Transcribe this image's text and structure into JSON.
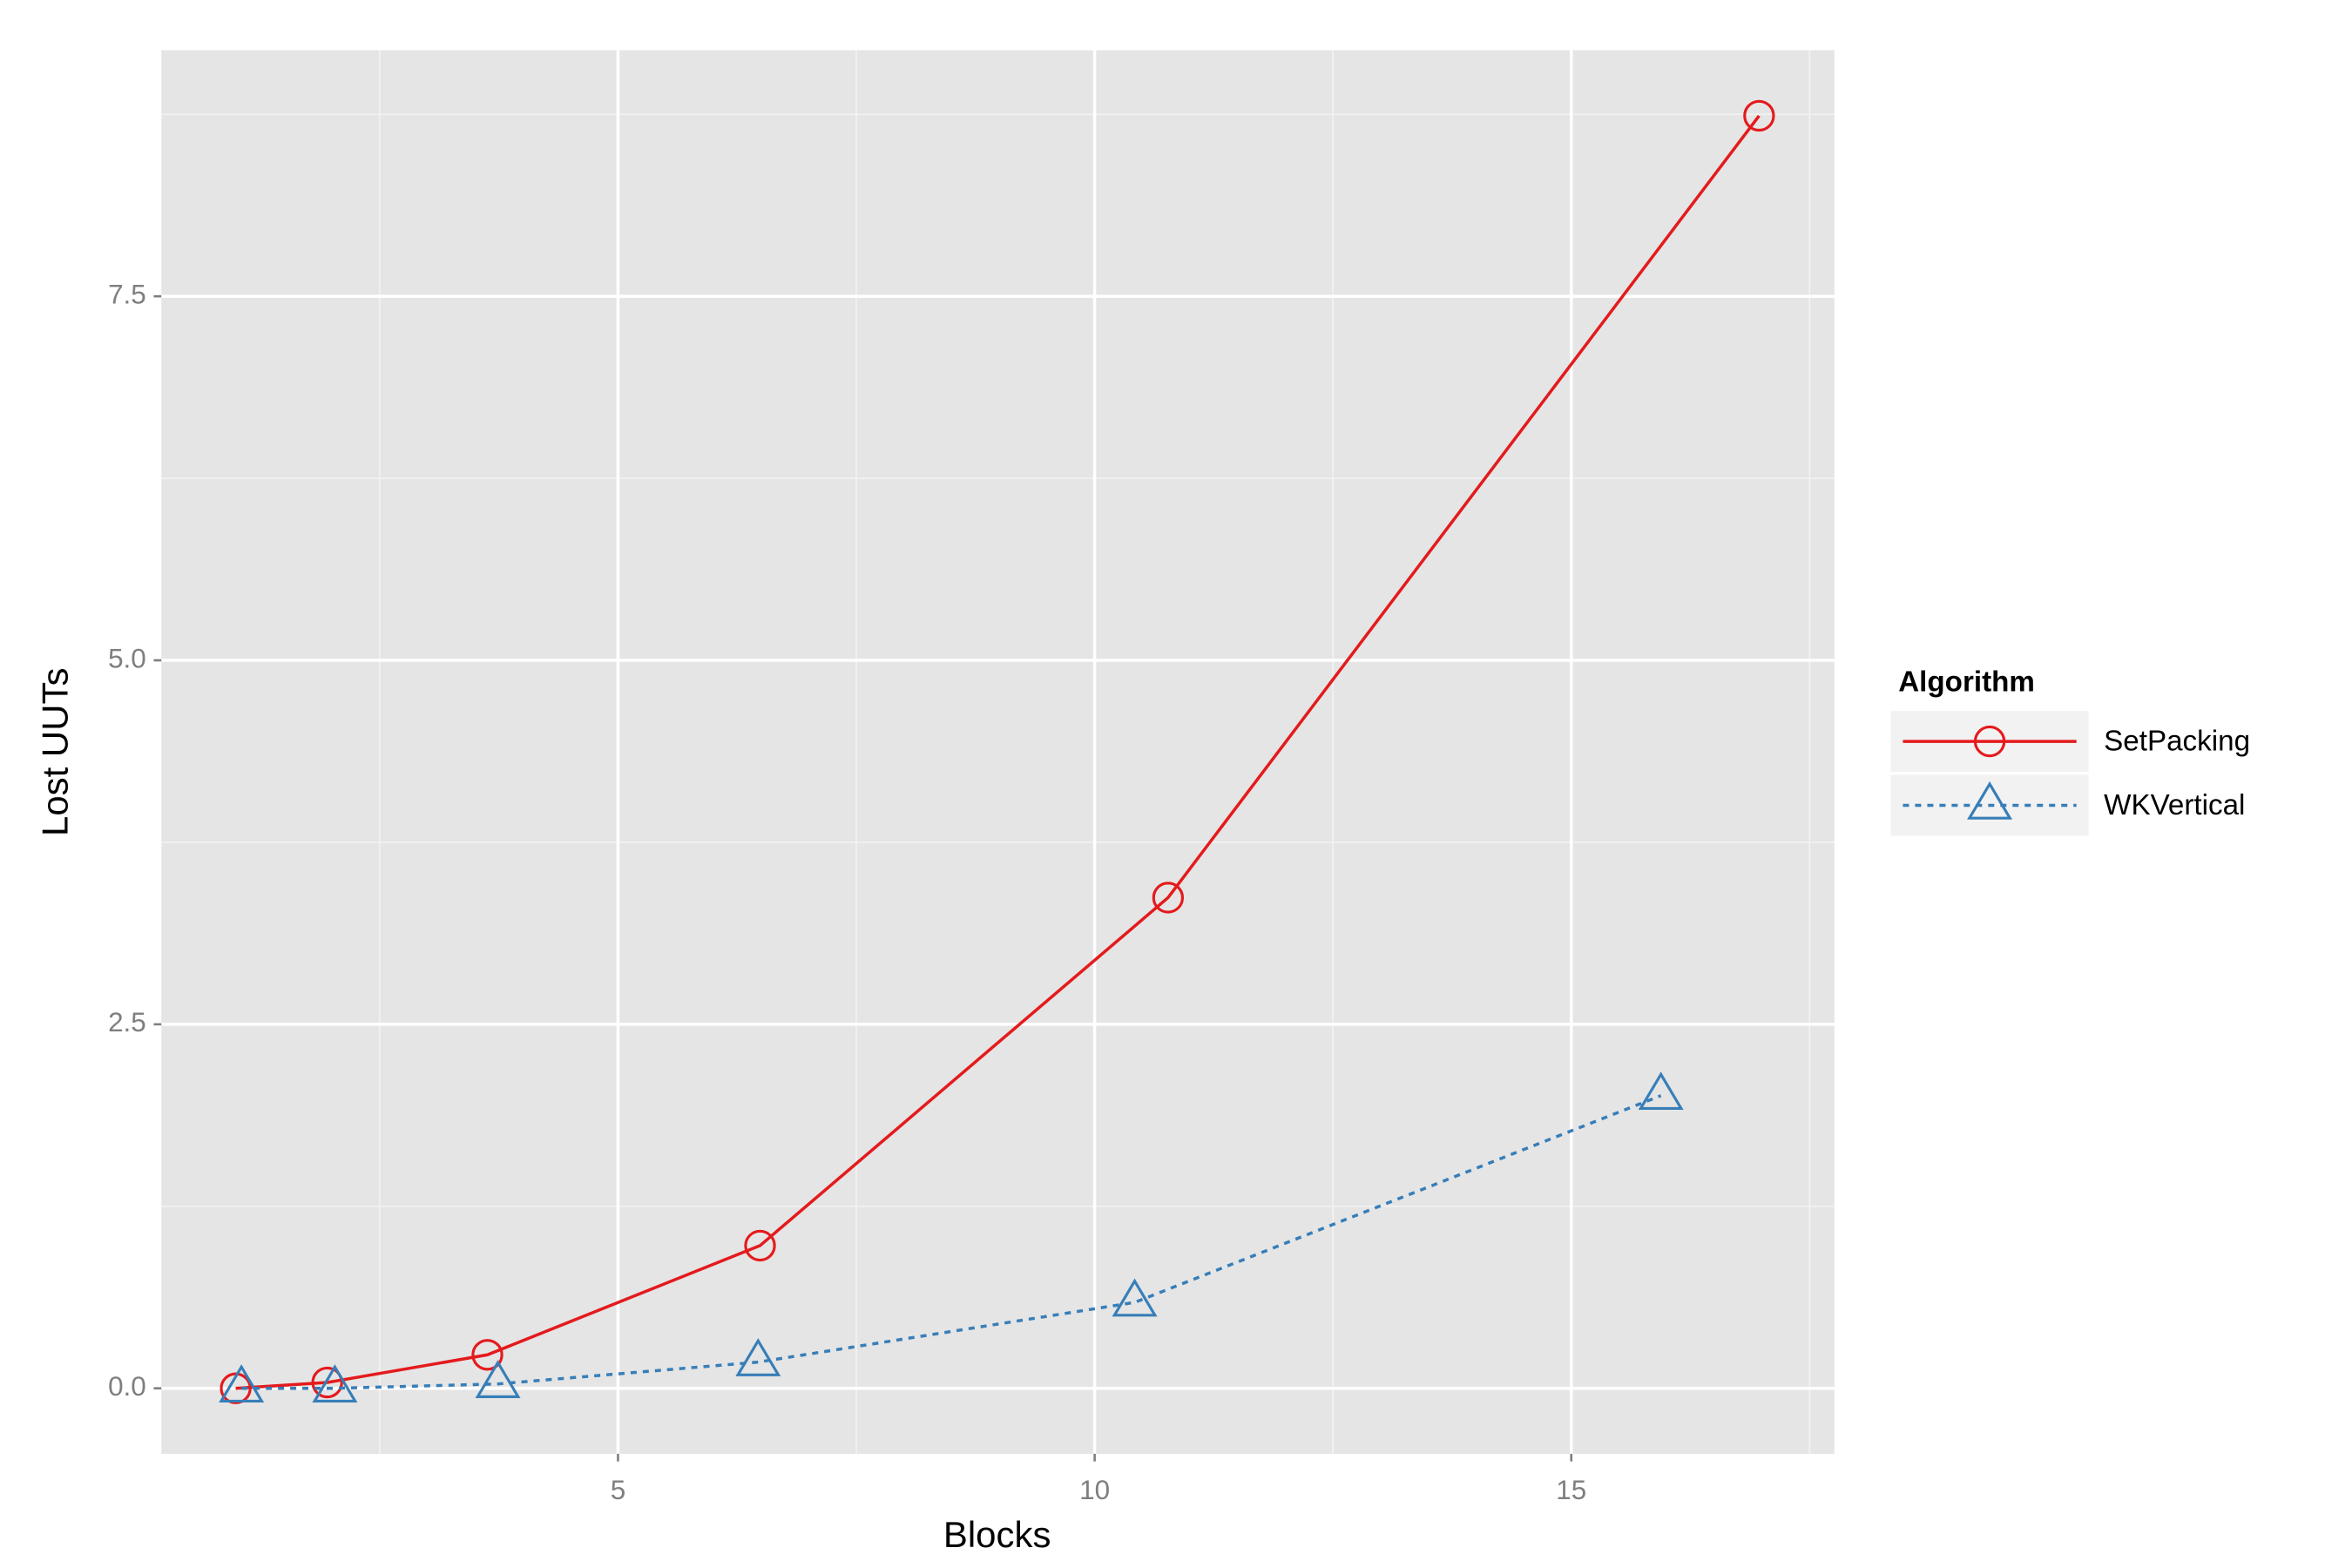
{
  "chart_data": {
    "type": "line",
    "xlabel": "Blocks",
    "ylabel": "Lost UUTs",
    "legend_title": "Algorithm",
    "xlim": [
      0.21,
      17.76
    ],
    "ylim": [
      -0.45,
      9.19
    ],
    "xticks": [
      5,
      10,
      15
    ],
    "yticks": [
      {
        "value": 0,
        "label": "0.0"
      },
      {
        "value": 2.5,
        "label": "2.5"
      },
      {
        "value": 5,
        "label": "5.0"
      },
      {
        "value": 7.5,
        "label": "7.5"
      }
    ],
    "x_minor_ticks": [
      2.5,
      7.5,
      12.5,
      17.5
    ],
    "y_minor_ticks": [
      1.25,
      3.75,
      6.25,
      8.75
    ],
    "grid": true,
    "legend": "right",
    "series": [
      {
        "name": "SetPacking",
        "color": "#e41a1c",
        "marker": "circle",
        "linestyle": "solid",
        "x": [
          0.99,
          1.95,
          3.63,
          6.49,
          10.77,
          16.97
        ],
        "values": [
          0,
          0.04,
          0.23,
          0.98,
          3.37,
          8.74
        ]
      },
      {
        "name": "WKVertical",
        "color": "#377eb8",
        "marker": "triangle",
        "linestyle": "dashed",
        "x": [
          1.05,
          2.03,
          3.74,
          6.47,
          10.42,
          15.94
        ],
        "values": [
          0,
          0,
          0.03,
          0.18,
          0.59,
          2.01
        ]
      }
    ]
  }
}
